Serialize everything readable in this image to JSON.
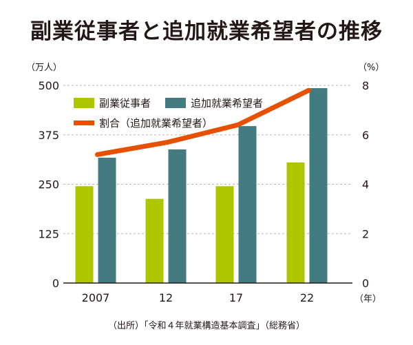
{
  "colors": {
    "side_job": "#aec600",
    "additional_job": "#447b80",
    "ratio_line": "#e65100",
    "grid": "#b5b5b5",
    "axis": "#231815"
  },
  "chart_data": {
    "type": "bar",
    "title": "副業従事者と追加就業希望者の推移",
    "categories": [
      "2007",
      "12",
      "17",
      "22"
    ],
    "x_unit_label": "（年）",
    "left_axis": {
      "label": "（万人）",
      "ylim": [
        0,
        500
      ],
      "ticks": [
        "0",
        "125",
        "250",
        "375",
        "500"
      ],
      "tick_values": [
        0,
        125,
        250,
        375,
        500
      ]
    },
    "right_axis": {
      "label": "（%）",
      "ylim": [
        0,
        8
      ],
      "ticks": [
        "0",
        "2",
        "4",
        "6",
        "8"
      ],
      "tick_values": [
        0,
        2,
        4,
        6,
        8
      ]
    },
    "grid": true,
    "legend_position": "top-left",
    "series": [
      {
        "name": "副業従事者",
        "type": "bar",
        "axis": "left",
        "values": [
          245,
          213,
          245,
          305
        ]
      },
      {
        "name": "追加就業希望者",
        "type": "bar",
        "axis": "left",
        "values": [
          317,
          338,
          397,
          493
        ]
      },
      {
        "name": "割合（追加就業希望者）",
        "type": "line",
        "axis": "right",
        "values": [
          5.2,
          5.7,
          6.4,
          7.8
        ]
      }
    ],
    "source": "（出所）「令和４年就業構造基本調査」（総務省）"
  }
}
